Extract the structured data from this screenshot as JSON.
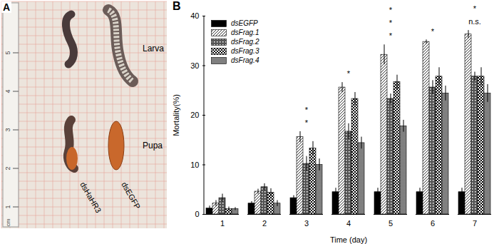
{
  "panel_a": {
    "label": "A",
    "ruler_labels": [
      "1",
      "2",
      "3",
      "4",
      "5"
    ],
    "ruler_unit": "cm",
    "rows": [
      "Larva",
      "Pupa"
    ],
    "columns": [
      "dsHaHR3",
      "dsEGFP"
    ]
  },
  "chart_data": {
    "type": "bar",
    "title": "B",
    "x_label": "Time (day)",
    "y_label": "Mortality(%)",
    "x": [
      1,
      2,
      3,
      4,
      5,
      6,
      7
    ],
    "series": [
      {
        "name": "dsEGFP",
        "color": "#000000",
        "values": [
          1.2,
          2.2,
          3.3,
          4.5,
          4.5,
          4.5,
          4.5
        ],
        "errors": [
          0.5,
          0.4,
          0.5,
          0.8,
          0.8,
          0.8,
          0.8
        ]
      },
      {
        "name": "dsFrag.1",
        "color": "#000000",
        "values": [
          2.2,
          4.6,
          15.6,
          25.6,
          32.2,
          34.8,
          36.3
        ],
        "errors": [
          0.6,
          0.5,
          1.1,
          1.0,
          2.0,
          0.4,
          0.8
        ]
      },
      {
        "name": "dsFrag.2",
        "color": "#000000",
        "values": [
          3.3,
          5.5,
          10.2,
          16.7,
          23.3,
          25.6,
          27.8
        ],
        "errors": [
          0.8,
          0.7,
          1.5,
          1.6,
          1.0,
          1.4,
          0.9
        ]
      },
      {
        "name": "dsFrag.3",
        "color": "#000000",
        "values": [
          1.1,
          4.4,
          13.3,
          23.3,
          26.7,
          27.8,
          27.8
        ],
        "errors": [
          0.4,
          0.8,
          1.4,
          1.3,
          1.4,
          1.8,
          1.8
        ]
      },
      {
        "name": "dsFrag.4",
        "color": "#000000",
        "values": [
          1.1,
          2.2,
          10.0,
          14.4,
          17.8,
          24.4,
          24.4
        ],
        "errors": [
          0.3,
          0.6,
          1.2,
          1.2,
          1.2,
          1.5,
          1.8
        ]
      }
    ],
    "ylim": [
      0,
      40
    ],
    "yticks": [
      0,
      10,
      20,
      30,
      40
    ],
    "legend": "upper-left",
    "annotations": [
      {
        "x": 3,
        "text": "*"
      },
      {
        "x": 3,
        "text": "*"
      },
      {
        "x": 4,
        "text": "*"
      },
      {
        "x": 5,
        "text": "*"
      },
      {
        "x": 5,
        "text": "*"
      },
      {
        "x": 5,
        "text": "*"
      },
      {
        "x": 6,
        "text": "*"
      },
      {
        "x": 7,
        "text": "n.s."
      },
      {
        "x": 7,
        "text": "*"
      }
    ]
  }
}
